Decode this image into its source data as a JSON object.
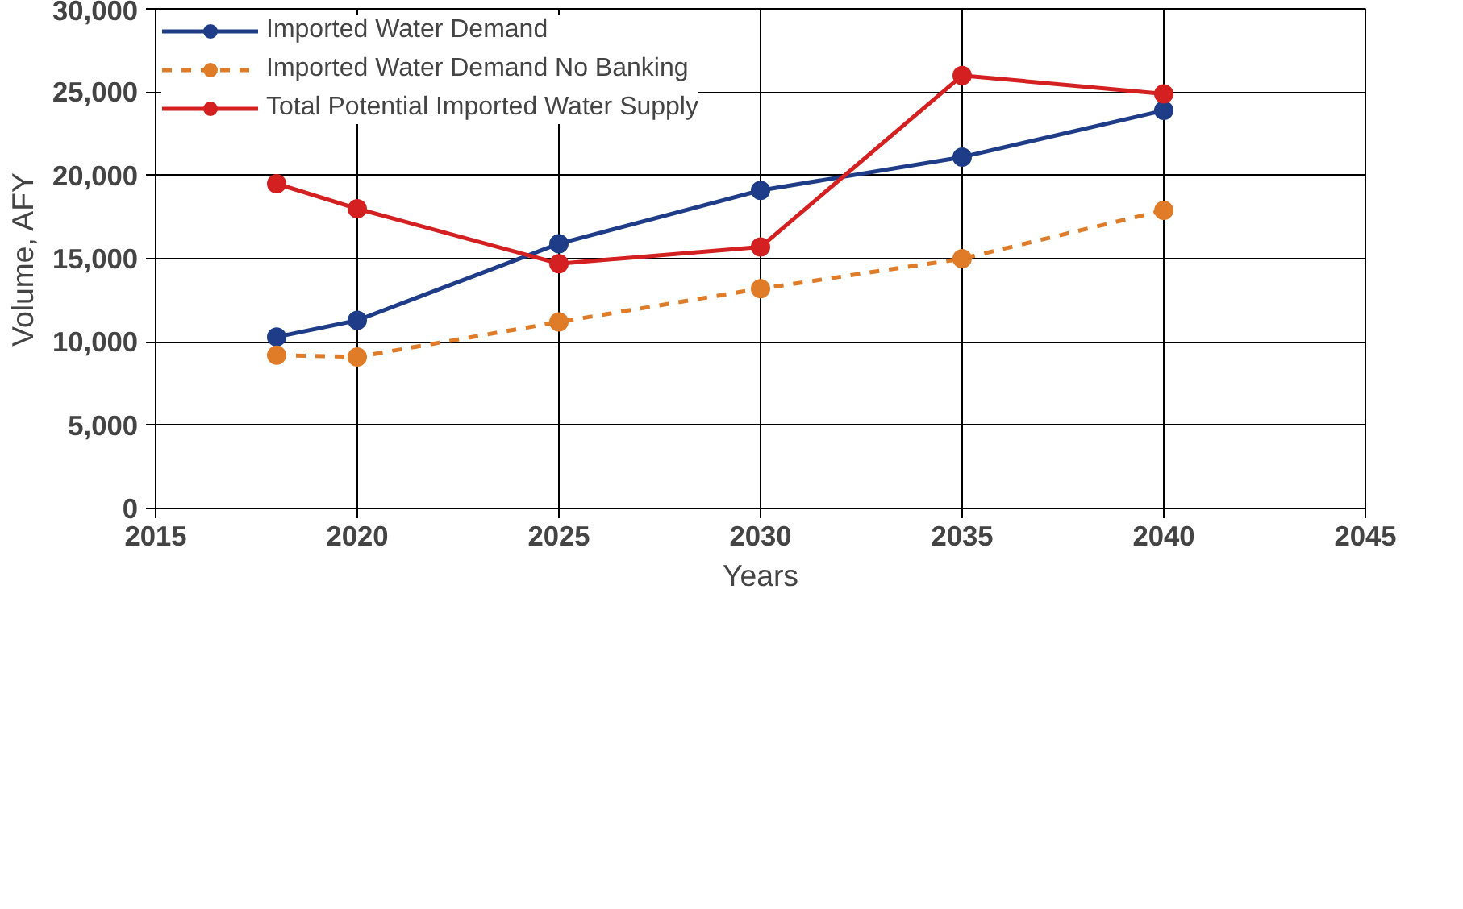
{
  "chart_data": {
    "type": "line",
    "xlabel": "Years",
    "ylabel": "Volume, AFY",
    "xlim": [
      2015,
      2045
    ],
    "xticks": [
      2015,
      2020,
      2025,
      2030,
      2035,
      2040,
      2045
    ],
    "ylim": [
      0,
      30000
    ],
    "yticks": [
      {
        "value": 0,
        "label": "0"
      },
      {
        "value": 5000,
        "label": "5,000"
      },
      {
        "value": 10000,
        "label": "10,000"
      },
      {
        "value": 15000,
        "label": "15,000"
      },
      {
        "value": 20000,
        "label": "20,000"
      },
      {
        "value": 25000,
        "label": "25,000"
      },
      {
        "value": 30000,
        "label": "30,000"
      }
    ],
    "x": [
      2018,
      2020,
      2025,
      2030,
      2035,
      2040
    ],
    "series": [
      {
        "name": "Imported Water Demand",
        "color": "#1f3c88",
        "line_style": "solid",
        "values": [
          10300,
          11300,
          15900,
          19100,
          21100,
          23900
        ]
      },
      {
        "name": "Imported Water Demand No Banking",
        "color": "#e07b28",
        "line_style": "dashed",
        "values": [
          9200,
          9100,
          11200,
          13200,
          15000,
          17900
        ]
      },
      {
        "name": "Total Potential Imported Water Supply",
        "color": "#d42020",
        "line_style": "solid",
        "values": [
          19500,
          18000,
          14700,
          15700,
          26000,
          24900
        ]
      }
    ],
    "marker": "circle",
    "grid": true,
    "legend": "top"
  }
}
